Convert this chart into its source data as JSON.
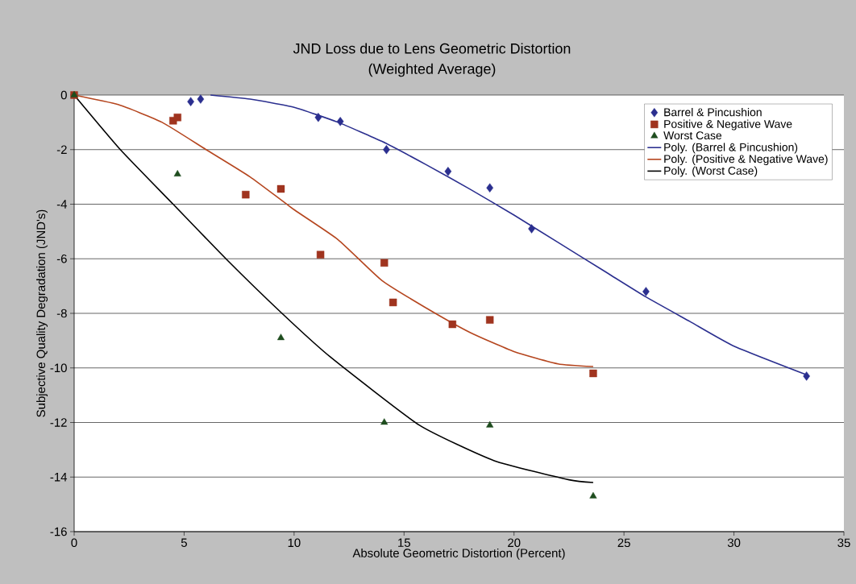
{
  "chart_data": {
    "type": "scatter",
    "title": "JND Loss due to Lens Geometric Distortion",
    "subtitle": "(Weighted Average)",
    "xlabel": "Absolute Geometric Distortion (Percent)",
    "ylabel": "Subjective Quality Degradation (JND's)",
    "xlim": [
      0,
      35
    ],
    "ylim": [
      -16,
      0
    ],
    "xticks": [
      0,
      5,
      10,
      15,
      20,
      25,
      30,
      35
    ],
    "yticks": [
      -16,
      -14,
      -12,
      -10,
      -8,
      -6,
      -4,
      -2,
      0
    ],
    "grid": "y",
    "legend": "top right",
    "series": [
      {
        "name": "Barrel & Pincushion",
        "color": "#2b2f8f",
        "marker": "diamond",
        "x": [
          5.3,
          5.75,
          11.1,
          12.1,
          14.2,
          17.0,
          18.9,
          20.8,
          26.0,
          33.3
        ],
        "values": [
          -0.24,
          -0.15,
          -0.82,
          -0.97,
          -2.0,
          -2.8,
          -3.4,
          -4.9,
          -7.2,
          -10.3
        ]
      },
      {
        "name": "Positive & Negative Wave",
        "color": "#a0341f",
        "marker": "square",
        "x": [
          0,
          4.5,
          4.7,
          7.8,
          9.4,
          11.2,
          14.1,
          14.5,
          17.2,
          18.9,
          23.6
        ],
        "values": [
          0,
          -0.94,
          -0.82,
          -3.65,
          -3.44,
          -5.85,
          -6.15,
          -7.6,
          -8.4,
          -8.24,
          -10.2
        ]
      },
      {
        "name": "Worst Case",
        "color": "#1e4d1e",
        "marker": "triangle",
        "x": [
          0,
          4.7,
          9.4,
          14.1,
          18.9,
          23.6
        ],
        "values": [
          0,
          -2.9,
          -8.9,
          -12.0,
          -12.1,
          -14.7
        ]
      },
      {
        "name": "Poly. (Barrel & Pincushion)",
        "type": "line",
        "color": "#2b2f8f",
        "marker": "none",
        "line_style": "solid",
        "x": [
          6.2,
          8,
          10,
          12,
          14,
          16,
          18,
          20,
          22,
          24,
          26,
          28,
          30,
          33.3
        ],
        "values": [
          0,
          -0.15,
          -0.45,
          -1.0,
          -1.7,
          -2.55,
          -3.45,
          -4.4,
          -5.4,
          -6.4,
          -7.4,
          -8.3,
          -9.2,
          -10.25
        ]
      },
      {
        "name": "Poly. (Positive & Negative Wave)",
        "type": "line",
        "color": "#b5461f",
        "marker": "none",
        "line_style": "solid",
        "x": [
          0,
          2,
          4,
          6,
          8,
          10,
          12,
          14,
          16,
          18,
          20,
          22,
          23.6
        ],
        "values": [
          0,
          -0.35,
          -1.0,
          -2.0,
          -3.0,
          -4.2,
          -5.3,
          -6.8,
          -7.8,
          -8.7,
          -9.4,
          -9.85,
          -9.95
        ]
      },
      {
        "name": "Poly. (Worst Case)",
        "type": "line",
        "color": "#000000",
        "marker": "none",
        "line_style": "solid",
        "x": [
          0,
          2.1,
          4.5,
          6.9,
          9.45,
          11.65,
          15.7,
          19.1,
          22.5,
          23.6
        ],
        "values": [
          0,
          -2.0,
          -4.0,
          -6.0,
          -8.0,
          -9.6,
          -12.1,
          -13.4,
          -14.1,
          -14.2
        ]
      }
    ]
  }
}
